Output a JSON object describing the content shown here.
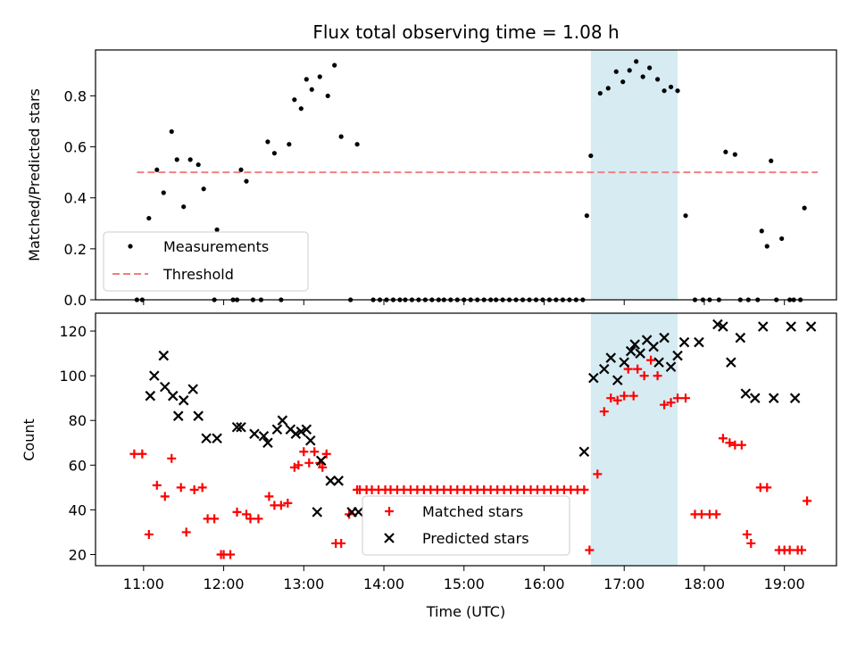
{
  "chart_data": [
    {
      "panel": "top",
      "type": "scatter",
      "title": "Flux total observing time = 1.08 h",
      "xlabel": "",
      "ylabel": "Matched/Predicted stars",
      "ylim": [
        0,
        0.98
      ],
      "yticks": [
        0.0,
        0.2,
        0.4,
        0.6,
        0.8
      ],
      "ytick_labels": [
        "0.0",
        "0.2",
        "0.4",
        "0.6",
        "0.8"
      ],
      "xlim_hours": [
        10.4,
        19.65
      ],
      "xtick_labels": [
        "11:00",
        "12:00",
        "13:00",
        "14:00",
        "15:00",
        "16:00",
        "17:00",
        "18:00",
        "19:00"
      ],
      "grid": false,
      "legend_position": "lower-left",
      "highlight_span": {
        "start": "16:35",
        "end": "17:40",
        "color": "#add8e6"
      },
      "threshold": {
        "name": "Threshold",
        "value": 0.5,
        "x_from": "10:55",
        "x_to": "19:25",
        "color": "#f08080",
        "style": "dashed"
      },
      "series": [
        {
          "name": "Measurements",
          "color": "#000000",
          "marker": "dot",
          "x": [
            "10:55",
            "10:59",
            "11:04",
            "11:10",
            "11:15",
            "11:21",
            "11:25",
            "11:30",
            "11:35",
            "11:41",
            "11:45",
            "11:53",
            "11:55",
            "12:07",
            "12:10",
            "12:13",
            "12:17",
            "12:22",
            "12:28",
            "12:33",
            "12:38",
            "12:43",
            "12:49",
            "12:53",
            "12:58",
            "13:02",
            "13:06",
            "13:12",
            "13:18",
            "13:23",
            "13:28",
            "13:35",
            "13:40",
            "13:52",
            "13:57",
            "14:02",
            "14:07",
            "14:12",
            "14:16",
            "14:21",
            "14:26",
            "14:31",
            "14:36",
            "14:41",
            "14:45",
            "14:50",
            "14:55",
            "15:00",
            "15:05",
            "15:10",
            "15:15",
            "15:20",
            "15:24",
            "15:29",
            "15:34",
            "15:39",
            "15:44",
            "15:49",
            "15:54",
            "15:59",
            "16:04",
            "16:09",
            "16:14",
            "16:19",
            "16:24",
            "16:29",
            "16:32",
            "16:35",
            "16:42",
            "16:48",
            "16:54",
            "16:59",
            "17:04",
            "17:09",
            "17:14",
            "17:19",
            "17:25",
            "17:30",
            "17:35",
            "17:40",
            "17:46",
            "17:53",
            "17:59",
            "18:04",
            "18:11",
            "18:16",
            "18:23",
            "18:27",
            "18:33",
            "18:40",
            "18:43",
            "18:47",
            "18:50",
            "18:54",
            "18:58",
            "19:04",
            "19:07",
            "19:12",
            "19:15"
          ],
          "y": [
            0.0,
            0.0,
            0.32,
            0.51,
            0.42,
            0.66,
            0.55,
            0.365,
            0.55,
            0.53,
            0.435,
            0.0,
            0.275,
            0.0,
            0.0,
            0.51,
            0.465,
            0.0,
            0.0,
            0.62,
            0.575,
            0.0,
            0.61,
            0.785,
            0.75,
            0.865,
            0.825,
            0.875,
            0.8,
            0.92,
            0.64,
            0.0,
            0.61,
            0.0,
            0.0,
            0.0,
            0.0,
            0.0,
            0.0,
            0.0,
            0.0,
            0.0,
            0.0,
            0.0,
            0.0,
            0.0,
            0.0,
            0.0,
            0.0,
            0.0,
            0.0,
            0.0,
            0.0,
            0.0,
            0.0,
            0.0,
            0.0,
            0.0,
            0.0,
            0.0,
            0.0,
            0.0,
            0.0,
            0.0,
            0.0,
            0.0,
            0.33,
            0.565,
            0.81,
            0.83,
            0.895,
            0.855,
            0.9,
            0.935,
            0.875,
            0.91,
            0.865,
            0.82,
            0.835,
            0.82,
            0.33,
            0.0,
            0.0,
            0.0,
            0.0,
            0.58,
            0.57,
            0.0,
            0.0,
            0.0,
            0.27,
            0.21,
            0.545,
            0.0,
            0.24,
            0.0,
            0.0,
            0.0,
            0.36
          ]
        }
      ]
    },
    {
      "panel": "bottom",
      "type": "scatter",
      "title": "",
      "xlabel": "Time (UTC)",
      "ylabel": "Count",
      "ylim": [
        15,
        128
      ],
      "yticks": [
        20,
        40,
        60,
        80,
        100,
        120
      ],
      "ytick_labels": [
        "20",
        "40",
        "60",
        "80",
        "100",
        "120"
      ],
      "xlim_hours": [
        10.4,
        19.65
      ],
      "xtick_labels": [
        "11:00",
        "12:00",
        "13:00",
        "14:00",
        "15:00",
        "16:00",
        "17:00",
        "18:00",
        "19:00"
      ],
      "grid": false,
      "legend_position": "lower-center",
      "highlight_span": {
        "start": "16:35",
        "end": "17:40",
        "color": "#add8e6"
      },
      "series": [
        {
          "name": "Matched stars",
          "color": "#ff0000",
          "marker": "plus",
          "x": [
            "10:53",
            "10:59",
            "11:04",
            "11:10",
            "11:16",
            "11:21",
            "11:28",
            "11:32",
            "11:38",
            "11:44",
            "11:48",
            "11:53",
            "11:58",
            "12:00",
            "12:05",
            "12:10",
            "12:17",
            "12:20",
            "12:26",
            "12:34",
            "12:38",
            "12:43",
            "12:48",
            "12:53",
            "12:56",
            "13:00",
            "13:04",
            "13:08",
            "13:12",
            "13:14",
            "13:17",
            "13:24",
            "13:28",
            "13:34",
            "13:40",
            "13:42",
            "13:47",
            "13:51",
            "13:56",
            "14:01",
            "14:05",
            "14:10",
            "14:15",
            "14:20",
            "14:25",
            "14:30",
            "14:35",
            "14:40",
            "14:45",
            "14:50",
            "14:55",
            "15:00",
            "15:05",
            "15:10",
            "15:15",
            "15:20",
            "15:25",
            "15:30",
            "15:35",
            "15:40",
            "15:45",
            "15:50",
            "15:55",
            "16:00",
            "16:05",
            "16:10",
            "16:15",
            "16:20",
            "16:25",
            "16:30",
            "16:34",
            "16:40",
            "16:45",
            "16:50",
            "16:55",
            "17:00",
            "17:03",
            "17:07",
            "17:10",
            "17:15",
            "17:20",
            "17:25",
            "17:30",
            "17:35",
            "17:40",
            "17:46",
            "17:53",
            "17:58",
            "18:04",
            "18:09",
            "18:14",
            "18:19",
            "18:23",
            "18:28",
            "18:32",
            "18:35",
            "18:42",
            "18:47",
            "18:56",
            "19:00",
            "19:04",
            "19:10",
            "19:13",
            "19:17"
          ],
          "y": [
            65,
            65,
            29,
            51,
            46,
            63,
            50,
            30,
            49,
            50,
            36,
            36,
            20,
            20,
            20,
            39,
            38,
            36,
            36,
            46,
            42,
            42,
            43,
            59,
            60,
            66,
            61,
            66,
            61,
            59,
            65,
            25,
            25,
            38,
            49,
            49,
            49,
            49,
            49,
            49,
            49,
            49,
            49,
            49,
            49,
            49,
            49,
            49,
            49,
            49,
            49,
            49,
            49,
            49,
            49,
            49,
            49,
            49,
            49,
            49,
            49,
            49,
            49,
            49,
            49,
            49,
            49,
            49,
            49,
            49,
            22,
            56,
            84,
            90,
            89,
            91,
            103,
            91,
            103,
            100,
            107,
            100,
            87,
            88,
            90,
            90,
            38,
            38,
            38,
            38,
            72,
            70,
            69,
            69,
            29,
            25,
            50,
            50,
            22,
            22,
            22,
            22,
            22,
            44
          ]
        },
        {
          "name": "Predicted stars",
          "color": "#000000",
          "marker": "x",
          "x": [
            "11:05",
            "11:08",
            "11:15",
            "11:16",
            "11:22",
            "11:26",
            "11:30",
            "11:37",
            "11:41",
            "11:47",
            "11:55",
            "12:10",
            "12:13",
            "12:23",
            "12:30",
            "12:33",
            "12:40",
            "12:44",
            "12:50",
            "12:54",
            "12:58",
            "13:02",
            "13:05",
            "13:10",
            "13:13",
            "13:20",
            "13:26",
            "13:36",
            "13:41",
            "16:30",
            "16:37",
            "16:45",
            "16:50",
            "16:55",
            "17:00",
            "17:05",
            "17:08",
            "17:12",
            "17:17",
            "17:22",
            "17:26",
            "17:30",
            "17:35",
            "17:40",
            "17:45",
            "17:56",
            "18:10",
            "18:14",
            "18:20",
            "18:27",
            "18:31",
            "18:38",
            "18:44",
            "18:52",
            "19:05",
            "19:08",
            "19:20"
          ],
          "y": [
            91,
            100,
            109,
            95,
            91,
            82,
            89,
            94,
            82,
            72,
            72,
            77,
            77,
            74,
            73,
            70,
            76,
            80,
            76,
            74,
            75,
            76,
            71,
            39,
            62,
            53,
            53,
            39,
            39,
            66,
            99,
            103,
            108,
            98,
            106,
            111,
            114,
            110,
            116,
            113,
            106,
            117,
            104,
            109,
            115,
            115,
            123,
            122,
            106,
            117,
            92,
            90,
            122,
            90,
            122,
            90,
            122
          ]
        }
      ]
    }
  ]
}
